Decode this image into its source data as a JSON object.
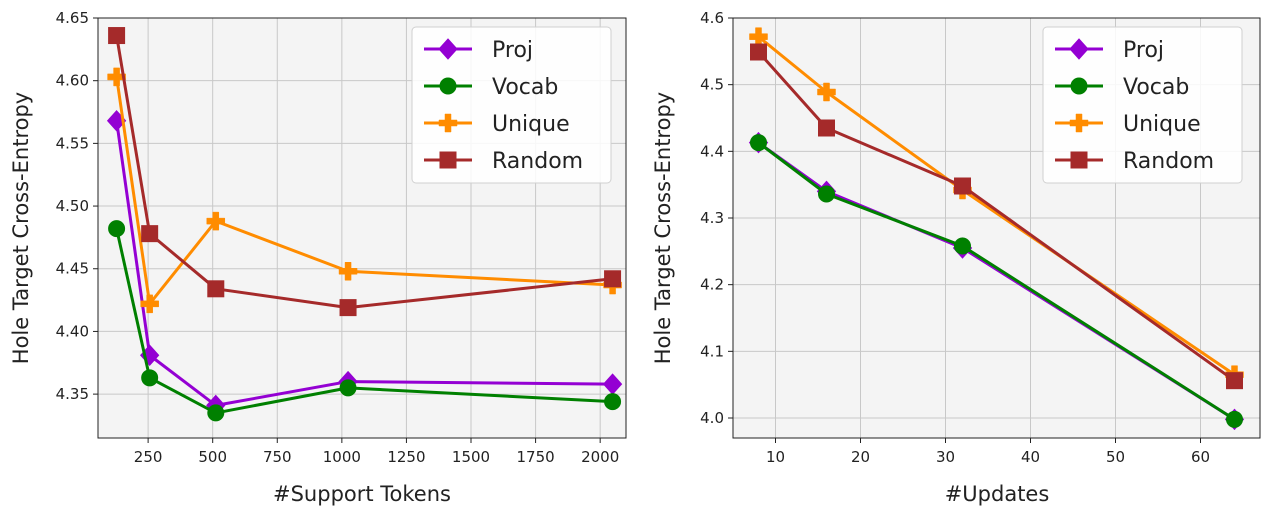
{
  "chart_data": [
    {
      "type": "line",
      "xlabel": "#Support Tokens",
      "ylabel": "Hole Target Cross-Entropy",
      "xlim": [
        56,
        2100
      ],
      "ylim": [
        4.315,
        4.65
      ],
      "xticks": [
        250,
        500,
        750,
        1000,
        1250,
        1500,
        1750,
        2000
      ],
      "yticks": [
        4.35,
        4.4,
        4.45,
        4.5,
        4.55,
        4.6,
        4.65
      ],
      "ytick_labels": [
        "4.35",
        "4.40",
        "4.45",
        "4.50",
        "4.55",
        "4.60",
        "4.65"
      ],
      "grid": true,
      "legend_position": "top-right",
      "x": [
        128,
        256,
        512,
        1024,
        2048
      ],
      "series": [
        {
          "name": "Proj",
          "marker": "diamond",
          "color": "#9400D3",
          "values": [
            4.568,
            4.381,
            4.341,
            4.36,
            4.358
          ]
        },
        {
          "name": "Vocab",
          "marker": "circle",
          "color": "#008000",
          "values": [
            4.482,
            4.363,
            4.335,
            4.355,
            4.344
          ]
        },
        {
          "name": "Unique",
          "marker": "plus",
          "color": "#FF8C00",
          "values": [
            4.603,
            4.422,
            4.488,
            4.448,
            4.437
          ]
        },
        {
          "name": "Random",
          "marker": "square",
          "color": "#A52A2A",
          "values": [
            4.636,
            4.478,
            4.434,
            4.419,
            4.442
          ]
        }
      ]
    },
    {
      "type": "line",
      "xlabel": "#Updates",
      "ylabel": "Hole Target Cross-Entropy",
      "xlim": [
        5,
        67
      ],
      "ylim": [
        3.97,
        4.6
      ],
      "xticks": [
        10,
        20,
        30,
        40,
        50,
        60
      ],
      "yticks": [
        4.0,
        4.1,
        4.2,
        4.3,
        4.4,
        4.5,
        4.6
      ],
      "ytick_labels": [
        "4.0",
        "4.1",
        "4.2",
        "4.3",
        "4.4",
        "4.5",
        "4.6"
      ],
      "grid": true,
      "legend_position": "top-right",
      "x": [
        8,
        16,
        32,
        64
      ],
      "series": [
        {
          "name": "Proj",
          "marker": "diamond",
          "color": "#9400D3",
          "values": [
            4.413,
            4.34,
            4.255,
            3.998
          ]
        },
        {
          "name": "Vocab",
          "marker": "circle",
          "color": "#008000",
          "values": [
            4.413,
            4.336,
            4.258,
            3.998
          ]
        },
        {
          "name": "Unique",
          "marker": "plus",
          "color": "#FF8C00",
          "values": [
            4.572,
            4.489,
            4.342,
            4.065
          ]
        },
        {
          "name": "Random",
          "marker": "square",
          "color": "#A52A2A",
          "values": [
            4.549,
            4.435,
            4.348,
            4.056
          ]
        }
      ]
    }
  ]
}
